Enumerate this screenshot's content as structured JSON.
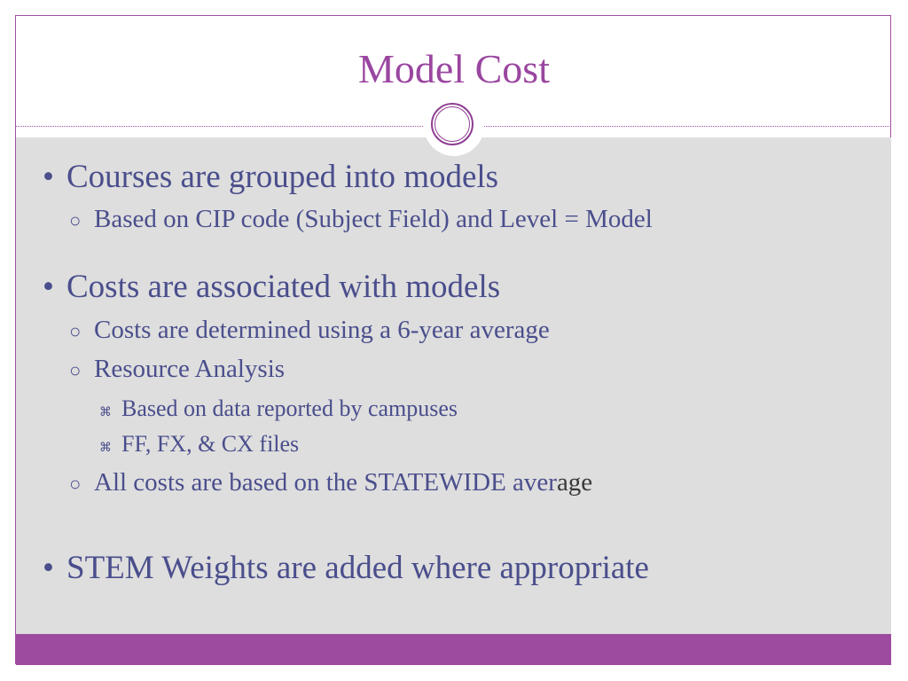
{
  "slide": {
    "title": "Model Cost",
    "colors": {
      "accent": "#9c4b9f",
      "text": "#4a4e8c",
      "background": "#dedede"
    },
    "bullets": [
      {
        "level": 1,
        "bullet": "•",
        "text": "Courses are grouped into models"
      },
      {
        "level": 2,
        "bullet": "○",
        "text": "Based on CIP code (Subject Field) and Level = Model"
      },
      {
        "level": 1,
        "bullet": "•",
        "text": "Costs are associated with models"
      },
      {
        "level": 2,
        "bullet": "○",
        "text": "Costs are determined using a 6-year average"
      },
      {
        "level": 2,
        "bullet": "○",
        "text": "Resource Analysis"
      },
      {
        "level": 3,
        "bullet": "⌘",
        "text": "Based on data reported by campuses"
      },
      {
        "level": 3,
        "bullet": "⌘",
        "text": "FF, FX, & CX files"
      },
      {
        "level": 2,
        "bullet": "○",
        "text": "All costs are based on the STATEWIDE aver",
        "text_tail": "age"
      },
      {
        "level": 1,
        "bullet": "•",
        "text": "STEM Weights are added where appropriate"
      }
    ]
  }
}
